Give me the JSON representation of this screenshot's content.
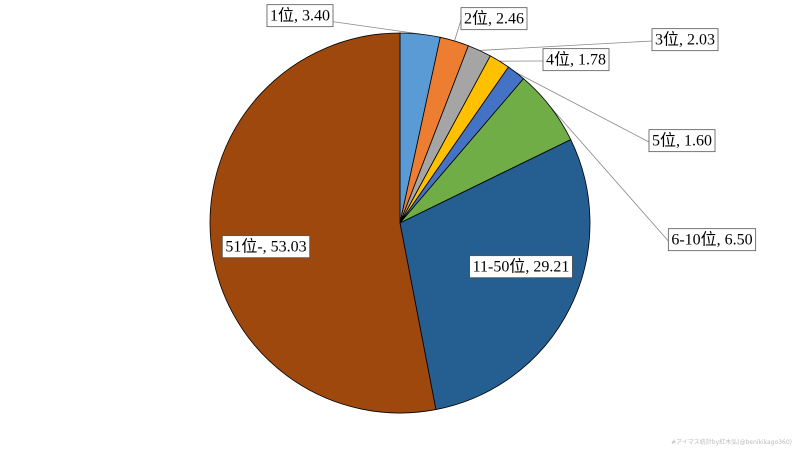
{
  "chart_data": {
    "type": "pie",
    "values": [
      3.4,
      2.46,
      2.03,
      1.78,
      1.6,
      6.5,
      29.21,
      53.03
    ],
    "value_labels": [
      "1位, 3.40",
      "2位, 2.46",
      "3位, 2.03",
      "4位, 1.78",
      "5位, 1.60",
      "6-10位, 6.50",
      "11-50位, 29.21",
      "51位-, 53.03"
    ],
    "colors": [
      "#5b9bd5",
      "#ed7d31",
      "#a5a5a5",
      "#ffc000",
      "#4472c4",
      "#70ad47",
      "#255e91",
      "#9e480e"
    ],
    "footnote": "#アイマス統計by紅木弘(@benikikago360)"
  }
}
